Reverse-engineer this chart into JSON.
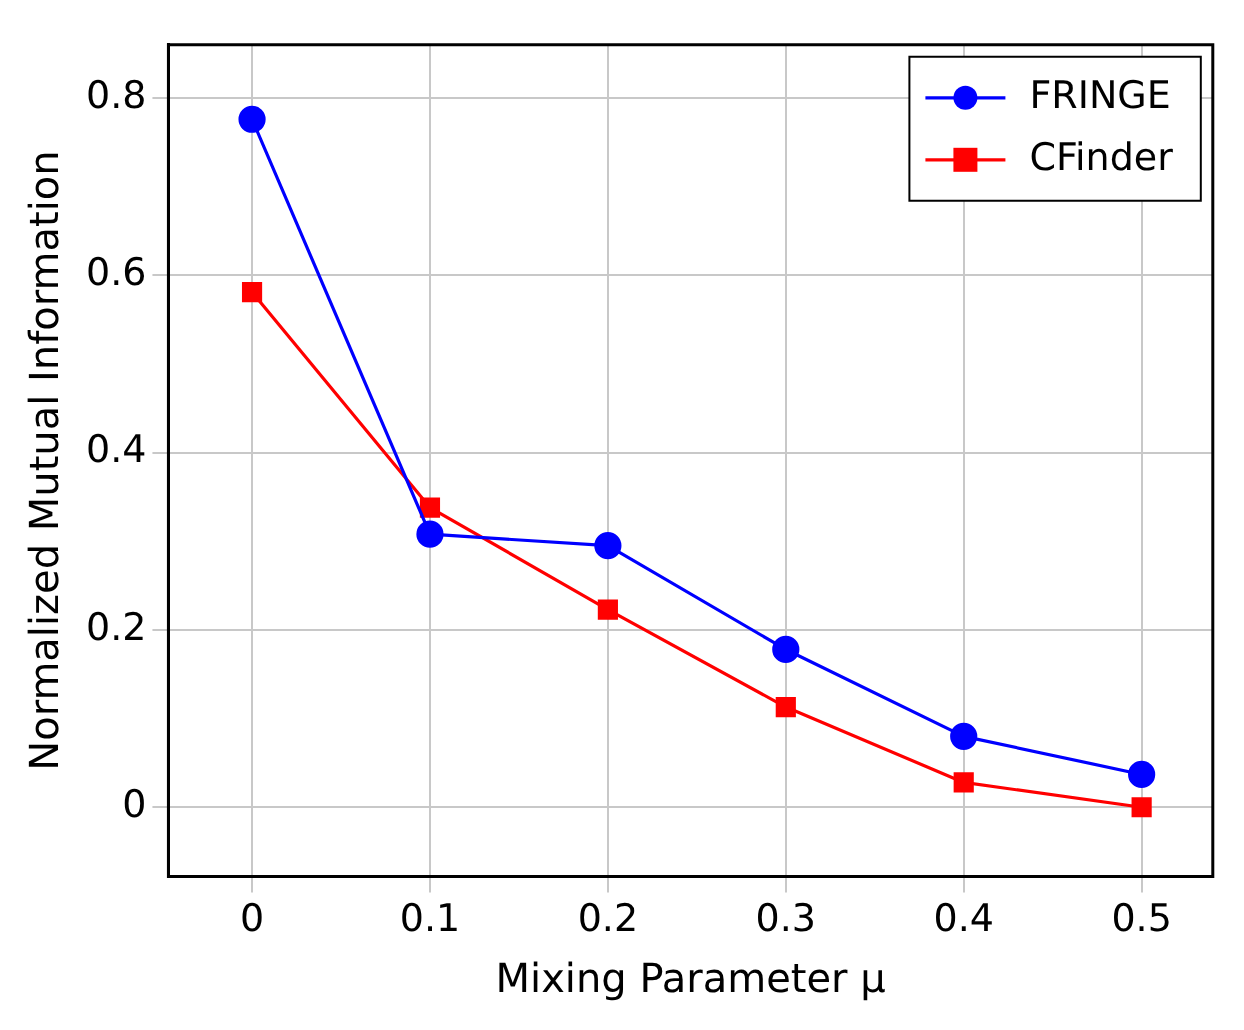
{
  "chart_data": {
    "type": "line",
    "xlabel": "Mixing Parameter μ",
    "ylabel": "Normalized Mutual Information",
    "x": [
      0,
      0.1,
      0.2,
      0.3,
      0.4,
      0.5
    ],
    "series": [
      {
        "name": "FRINGE",
        "color": "#0000ff",
        "marker": "circle",
        "values": [
          0.776,
          0.308,
          0.295,
          0.178,
          0.08,
          0.037
        ]
      },
      {
        "name": "CFinder",
        "color": "#ff0000",
        "marker": "square",
        "values": [
          0.581,
          0.338,
          0.223,
          0.113,
          0.028,
          0
        ]
      }
    ],
    "xlim": [
      -0.047,
      0.54
    ],
    "ylim": [
      -0.078,
      0.86
    ],
    "xticks": [
      0,
      0.1,
      0.2,
      0.3,
      0.4,
      0.5
    ],
    "yticks": [
      0,
      0.2,
      0.4,
      0.6,
      0.8
    ],
    "grid": true,
    "legend": "top right",
    "line_style": "solid"
  }
}
